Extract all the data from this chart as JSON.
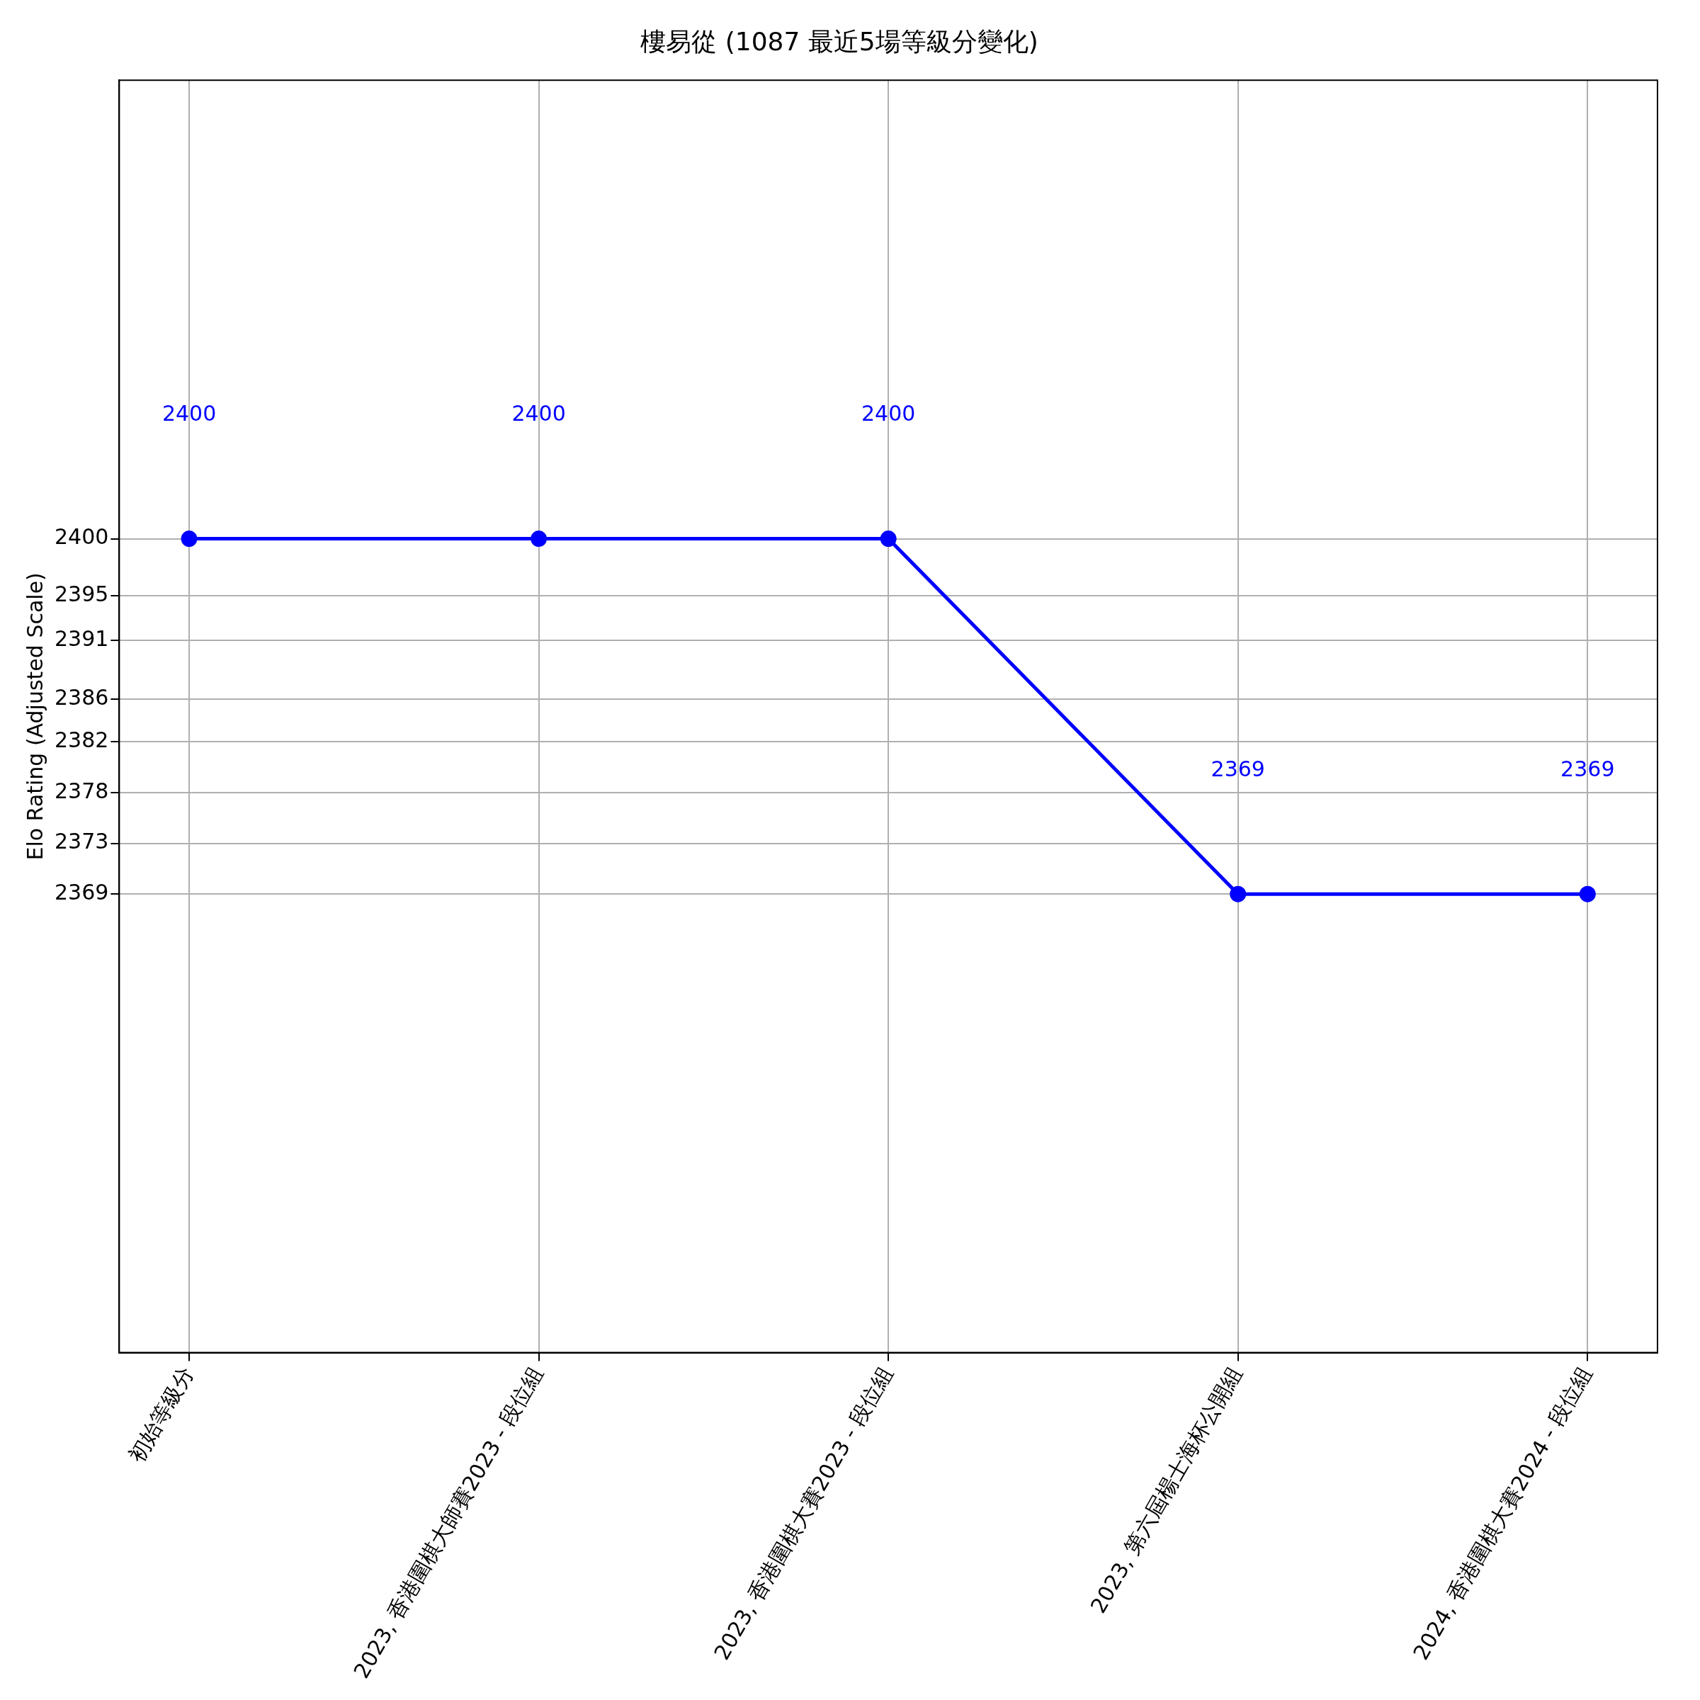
{
  "chart_data": {
    "type": "line",
    "title": "樓易從 (1087 最近5場等級分變化)",
    "ylabel": "Elo Rating (Adjusted Scale)",
    "categories": [
      "初始等級分",
      "2023, 香港圍棋大師賽2023 - 段位組",
      "2023, 香港圍棋大賽2023 - 段位組",
      "2023, 第六屆楊士海杯公開組",
      "2024, 香港圍棋大賽2024 - 段位組"
    ],
    "series": [
      {
        "color": "#0000ff",
        "values": [
          2400,
          2400,
          2400,
          2369,
          2369
        ]
      }
    ],
    "ylim": [
      2329,
      2440
    ],
    "yticks": [
      {
        "value": 2369,
        "label": "2369"
      },
      {
        "value": 2373.43,
        "label": "2373"
      },
      {
        "value": 2377.86,
        "label": "2378"
      },
      {
        "value": 2382.29,
        "label": "2382"
      },
      {
        "value": 2386,
        "label": "2386"
      },
      {
        "value": 2391.14,
        "label": "2391"
      },
      {
        "value": 2395,
        "label": "2395"
      },
      {
        "value": 2400,
        "label": "2400"
      }
    ],
    "annotations": [
      "2400",
      "2400",
      "2400",
      "2369",
      "2369"
    ],
    "grid": true,
    "marker": "circle",
    "line_style": "solid"
  }
}
